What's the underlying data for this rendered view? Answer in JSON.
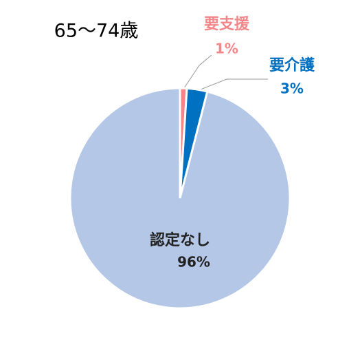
{
  "chart_data": {
    "type": "pie",
    "title": "65～74歳",
    "categories": [
      "要支援",
      "要介護",
      "認定なし"
    ],
    "values": [
      1,
      3,
      96
    ],
    "value_labels": [
      "1%",
      "3%",
      "96%"
    ],
    "colors": [
      "#f4868a",
      "#0070c0",
      "#b4c7e7"
    ],
    "label_colors": [
      "#f4868a",
      "#0070c0",
      "#222222"
    ]
  }
}
